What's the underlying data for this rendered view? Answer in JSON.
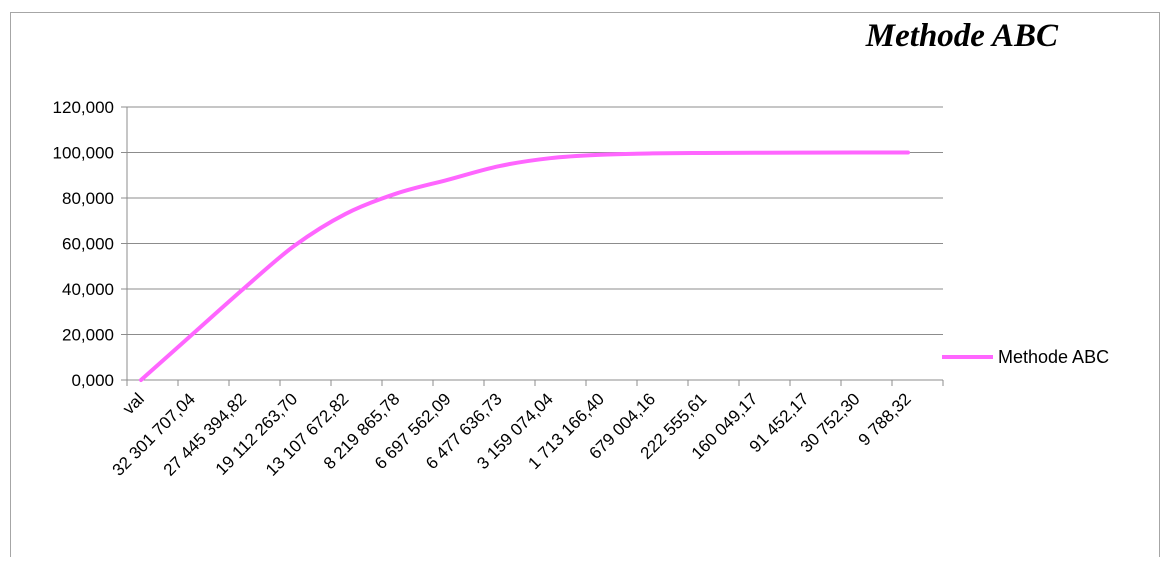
{
  "chart_data": {
    "type": "line",
    "title": "Methode ABC",
    "xlabel": "",
    "ylabel": "",
    "ylim": [
      0,
      120
    ],
    "yticks": [
      "0,000",
      "20,000",
      "40,000",
      "60,000",
      "80,000",
      "100,000",
      "120,000"
    ],
    "categories": [
      "val",
      "32 301 707,04",
      "27 445 394,82",
      "19 112 263,70",
      "13 107 672,82",
      "8 219 865,78",
      "6 697 562,09",
      "6 477 636,73",
      "3 159 074,04",
      "1 713 166,40",
      "679 004,16",
      "222 555,61",
      "160 049,17",
      "91 452,17",
      "30 752,30",
      "9 788,32"
    ],
    "series": [
      {
        "name": "Methode ABC",
        "color": "#ff66ff",
        "values": [
          0,
          20,
          40,
          59,
          73,
          82,
          88,
          94,
          97.5,
          99,
          99.6,
          99.8,
          99.9,
          99.95,
          99.98,
          100
        ]
      }
    ],
    "grid": true,
    "legend_position": "right"
  }
}
